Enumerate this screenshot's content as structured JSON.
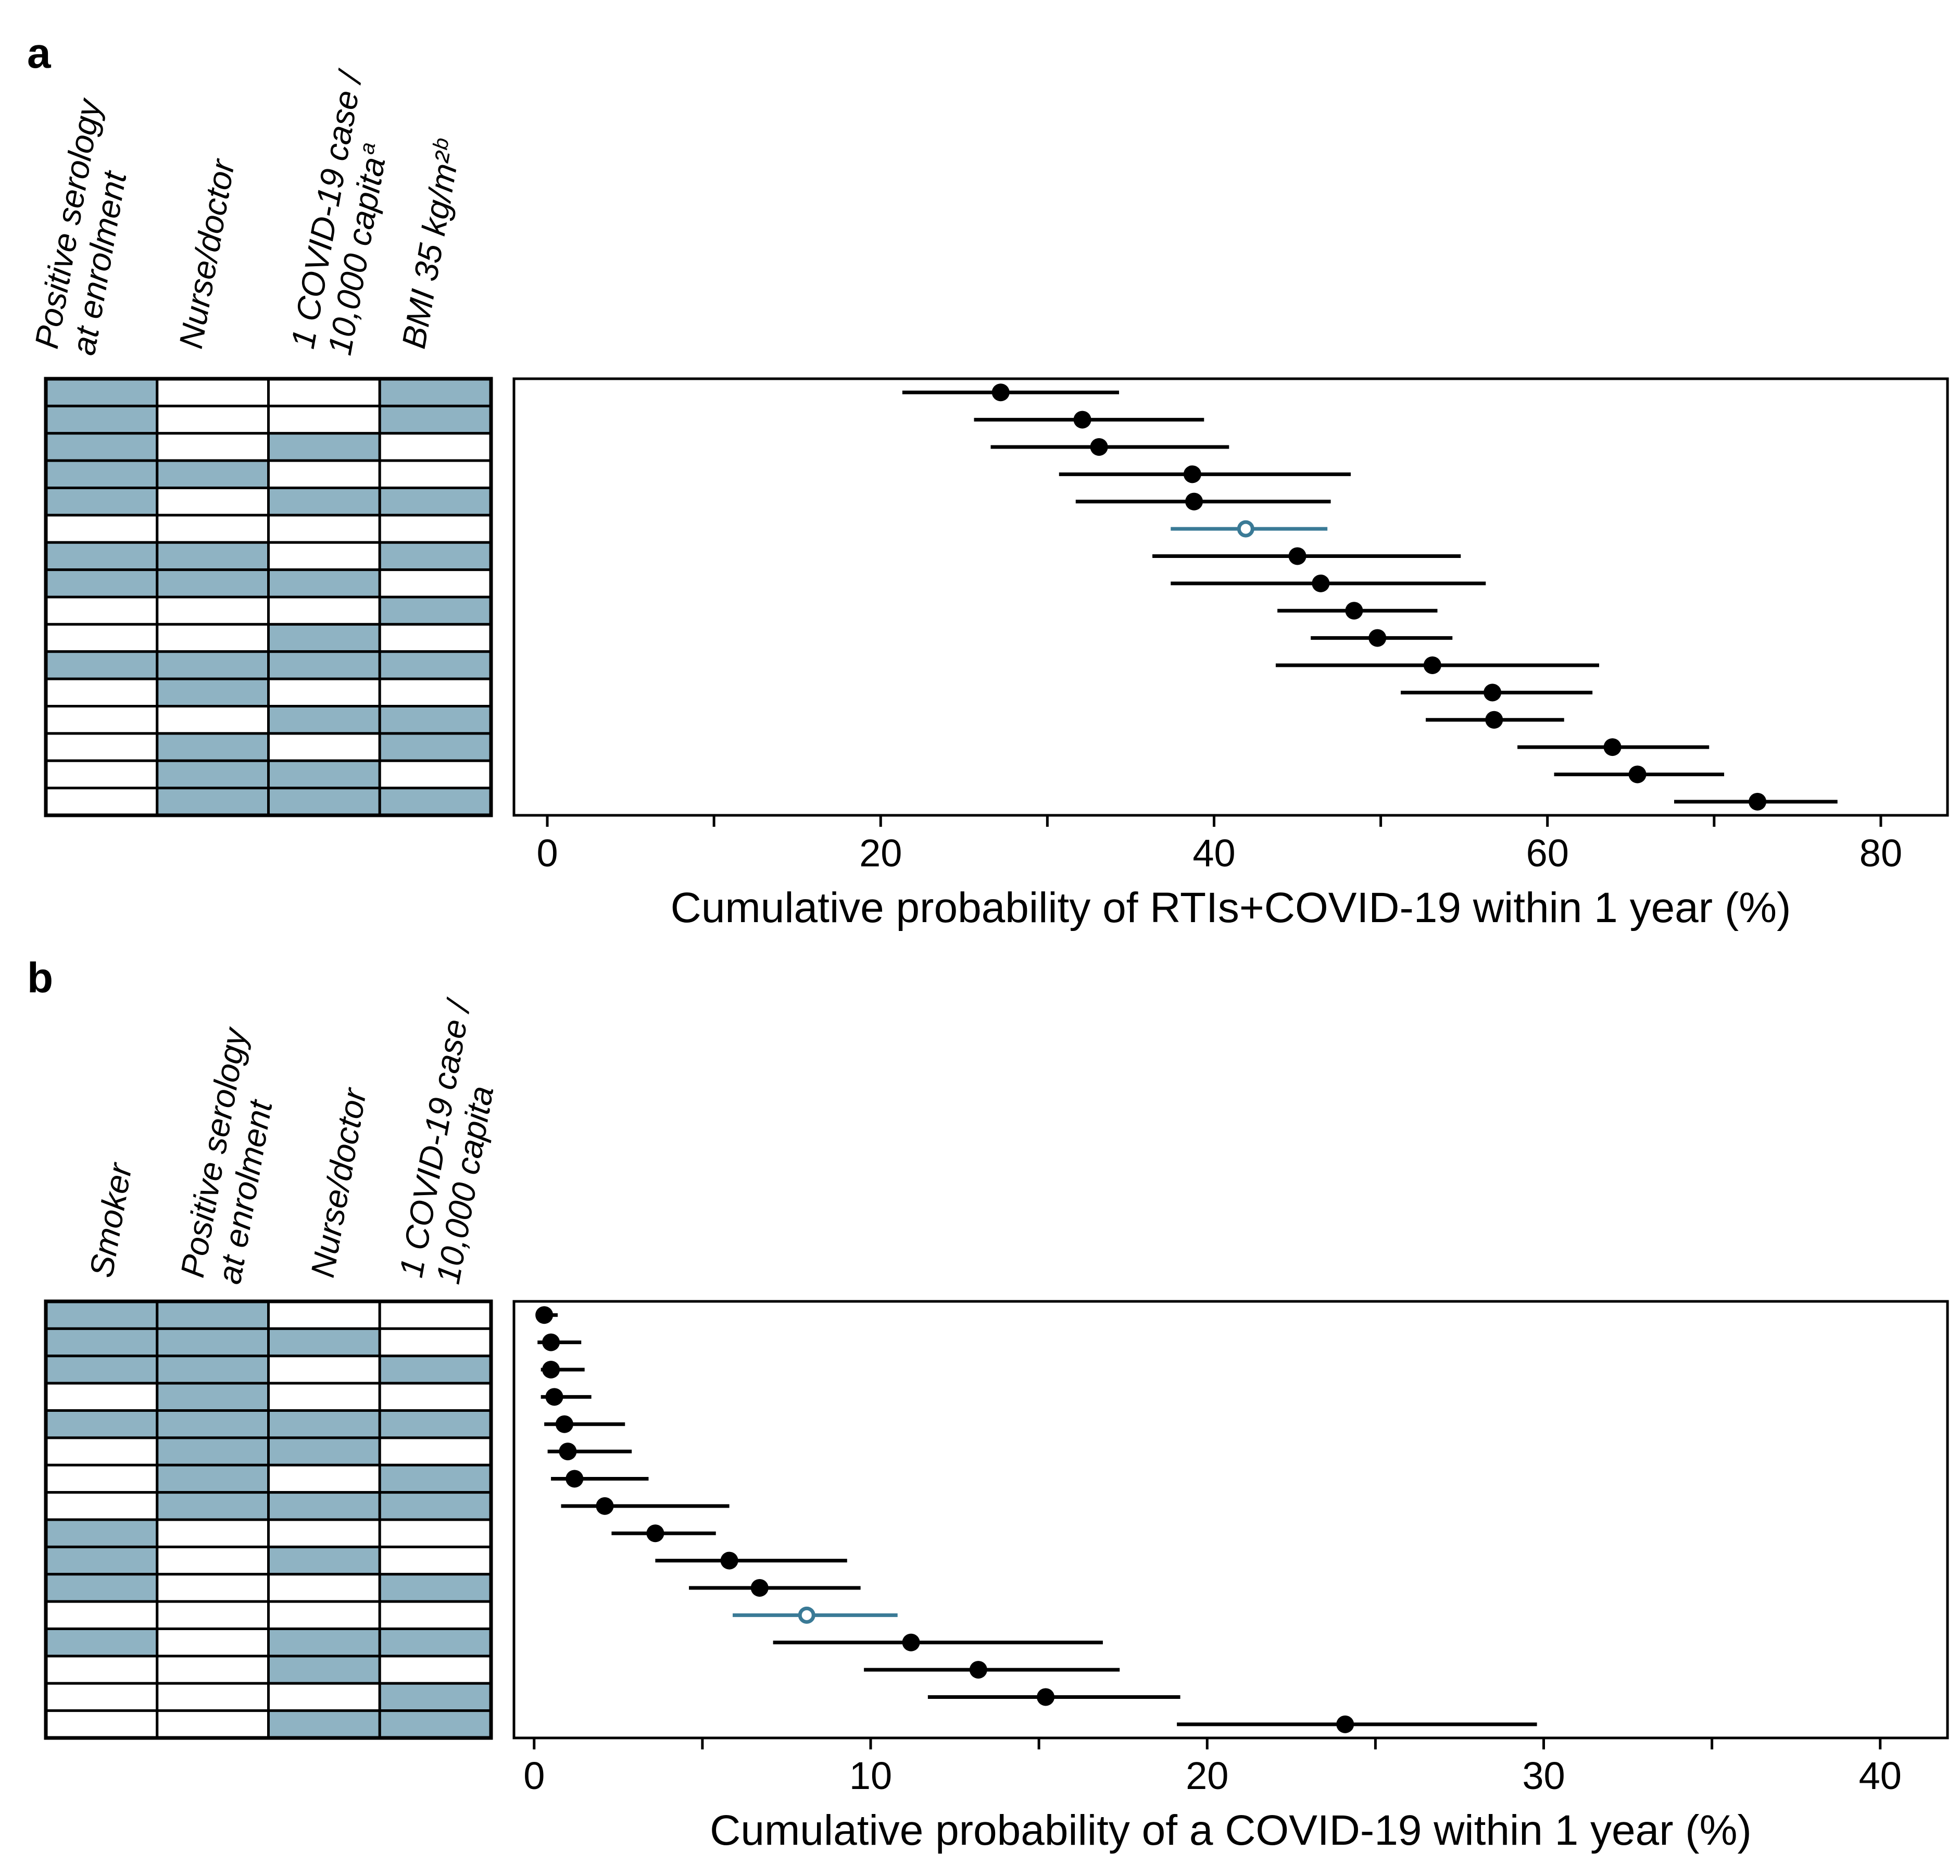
{
  "panels": [
    {
      "label": "a",
      "matrix": {
        "columns": [
          {
            "lines": [
              "Positive serology",
              "at enrolment"
            ]
          },
          {
            "lines": [
              "Nurse/doctor"
            ]
          },
          {
            "lines": [
              "1 COVID-19 case /",
              "10,000 capita"
            ],
            "sup": "a"
          },
          {
            "lines": [
              "BMI 35 kg/m²"
            ],
            "sup": "b"
          }
        ],
        "rows": [
          [
            1,
            0,
            0,
            1
          ],
          [
            1,
            0,
            0,
            1
          ],
          [
            1,
            0,
            1,
            0
          ],
          [
            1,
            1,
            0,
            0
          ],
          [
            1,
            0,
            1,
            1
          ],
          [
            0,
            0,
            0,
            0
          ],
          [
            1,
            1,
            0,
            1
          ],
          [
            1,
            1,
            1,
            0
          ],
          [
            0,
            0,
            0,
            1
          ],
          [
            0,
            0,
            1,
            0
          ],
          [
            1,
            1,
            1,
            1
          ],
          [
            0,
            1,
            0,
            0
          ],
          [
            0,
            0,
            1,
            1
          ],
          [
            0,
            1,
            0,
            1
          ],
          [
            0,
            1,
            1,
            0
          ],
          [
            0,
            1,
            1,
            1
          ]
        ]
      }
    },
    {
      "label": "b",
      "matrix": {
        "columns": [
          {
            "lines": [
              "Smoker"
            ]
          },
          {
            "lines": [
              "Positive serology",
              "at enrolment"
            ]
          },
          {
            "lines": [
              "Nurse/doctor"
            ]
          },
          {
            "lines": [
              "1 COVID-19 case /",
              "10,000 capita"
            ]
          }
        ],
        "rows": [
          [
            1,
            1,
            0,
            0
          ],
          [
            1,
            1,
            1,
            0
          ],
          [
            1,
            1,
            0,
            1
          ],
          [
            0,
            1,
            0,
            0
          ],
          [
            1,
            1,
            1,
            1
          ],
          [
            0,
            1,
            1,
            0
          ],
          [
            0,
            1,
            0,
            1
          ],
          [
            0,
            1,
            1,
            1
          ],
          [
            1,
            0,
            0,
            0
          ],
          [
            1,
            0,
            1,
            0
          ],
          [
            1,
            0,
            0,
            1
          ],
          [
            0,
            0,
            0,
            0
          ],
          [
            1,
            0,
            1,
            1
          ],
          [
            0,
            0,
            1,
            0
          ],
          [
            0,
            0,
            0,
            1
          ],
          [
            0,
            0,
            1,
            1
          ]
        ]
      }
    }
  ],
  "colors": {
    "filled": "#8fb3c3",
    "reference": "#3a7a96",
    "point": "#000000",
    "border": "#000000"
  },
  "chart_data": [
    {
      "type": "scatter",
      "subtype": "forest-plot",
      "xlabel": "Cumulative probability of RTIs+COVID-19 within 1 year (%)",
      "ylabel": "",
      "xlim": [
        -2,
        84
      ],
      "xticks": [
        0,
        10,
        20,
        30,
        40,
        50,
        60,
        70,
        80
      ],
      "xticklabels": [
        "0",
        "",
        "20",
        "",
        "40",
        "",
        "60",
        "",
        "80"
      ],
      "grid": false,
      "points": [
        {
          "est": 27.2,
          "lo": 21.3,
          "hi": 34.3,
          "reference": false
        },
        {
          "est": 32.1,
          "lo": 25.6,
          "hi": 39.4,
          "reference": false
        },
        {
          "est": 33.1,
          "lo": 26.6,
          "hi": 40.9,
          "reference": false
        },
        {
          "est": 38.7,
          "lo": 30.7,
          "hi": 48.2,
          "reference": false
        },
        {
          "est": 38.8,
          "lo": 31.7,
          "hi": 47.0,
          "reference": false
        },
        {
          "est": 41.9,
          "lo": 37.4,
          "hi": 46.8,
          "reference": true
        },
        {
          "est": 45.0,
          "lo": 36.3,
          "hi": 54.8,
          "reference": false
        },
        {
          "est": 46.4,
          "lo": 37.4,
          "hi": 56.3,
          "reference": false
        },
        {
          "est": 48.4,
          "lo": 43.8,
          "hi": 53.4,
          "reference": false
        },
        {
          "est": 49.8,
          "lo": 45.8,
          "hi": 54.3,
          "reference": false
        },
        {
          "est": 53.1,
          "lo": 43.7,
          "hi": 63.1,
          "reference": false
        },
        {
          "est": 56.7,
          "lo": 51.2,
          "hi": 62.7,
          "reference": false
        },
        {
          "est": 56.8,
          "lo": 52.7,
          "hi": 61.0,
          "reference": false
        },
        {
          "est": 63.9,
          "lo": 58.2,
          "hi": 69.7,
          "reference": false
        },
        {
          "est": 65.4,
          "lo": 60.4,
          "hi": 70.6,
          "reference": false
        },
        {
          "est": 72.6,
          "lo": 67.6,
          "hi": 77.4,
          "reference": false
        }
      ]
    },
    {
      "type": "scatter",
      "subtype": "forest-plot",
      "xlabel": "Cumulative probability of a COVID-19 within 1 year (%)",
      "ylabel": "",
      "xlim": [
        -0.6,
        42
      ],
      "xticks": [
        0,
        5,
        10,
        15,
        20,
        25,
        30,
        35,
        40
      ],
      "xticklabels": [
        "0",
        "",
        "10",
        "",
        "20",
        "",
        "30",
        "",
        "40"
      ],
      "grid": false,
      "points": [
        {
          "est": 0.3,
          "lo": 0.1,
          "hi": 0.7,
          "reference": false
        },
        {
          "est": 0.5,
          "lo": 0.1,
          "hi": 1.4,
          "reference": false
        },
        {
          "est": 0.5,
          "lo": 0.2,
          "hi": 1.5,
          "reference": false
        },
        {
          "est": 0.6,
          "lo": 0.2,
          "hi": 1.7,
          "reference": false
        },
        {
          "est": 0.9,
          "lo": 0.3,
          "hi": 2.7,
          "reference": false
        },
        {
          "est": 1.0,
          "lo": 0.4,
          "hi": 2.9,
          "reference": false
        },
        {
          "est": 1.2,
          "lo": 0.5,
          "hi": 3.4,
          "reference": false
        },
        {
          "est": 2.1,
          "lo": 0.8,
          "hi": 5.8,
          "reference": false
        },
        {
          "est": 3.6,
          "lo": 2.3,
          "hi": 5.4,
          "reference": false
        },
        {
          "est": 5.8,
          "lo": 3.6,
          "hi": 9.3,
          "reference": false
        },
        {
          "est": 6.7,
          "lo": 4.6,
          "hi": 9.7,
          "reference": false
        },
        {
          "est": 8.1,
          "lo": 5.9,
          "hi": 10.8,
          "reference": true
        },
        {
          "est": 11.2,
          "lo": 7.1,
          "hi": 16.9,
          "reference": false
        },
        {
          "est": 13.2,
          "lo": 9.8,
          "hi": 17.4,
          "reference": false
        },
        {
          "est": 15.2,
          "lo": 11.7,
          "hi": 19.2,
          "reference": false
        },
        {
          "est": 24.1,
          "lo": 19.1,
          "hi": 29.8,
          "reference": false
        }
      ]
    }
  ]
}
